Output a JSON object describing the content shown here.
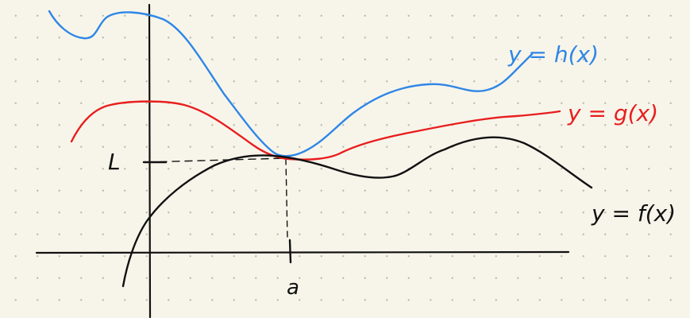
{
  "labels": {
    "h": "y = h(x)",
    "g": "y = g(x)",
    "f": "y = f(x)",
    "L": "L",
    "a": "a"
  },
  "colors": {
    "h": "#2f86e6",
    "g": "#e81e1e",
    "f": "#111111",
    "axes": "#111111"
  }
}
